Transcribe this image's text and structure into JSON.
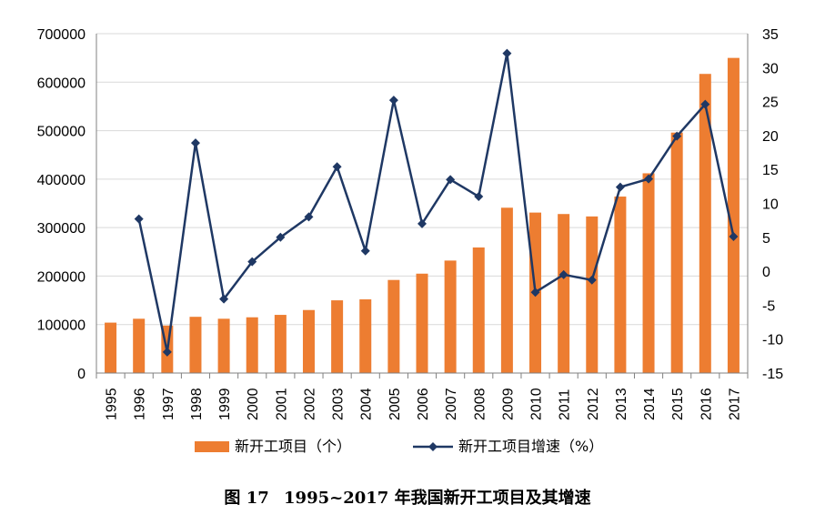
{
  "chart_data": {
    "type": "bar+line",
    "categories": [
      "1995",
      "1996",
      "1997",
      "1998",
      "1999",
      "2000",
      "2001",
      "2002",
      "2003",
      "2004",
      "2005",
      "2006",
      "2007",
      "2008",
      "2009",
      "2010",
      "2011",
      "2012",
      "2013",
      "2014",
      "2015",
      "2016",
      "2017"
    ],
    "series": [
      {
        "name": "新开工项目（个）",
        "type": "bar",
        "axis": "left",
        "color": "#ED7D31",
        "values": [
          104000,
          112000,
          98000,
          116000,
          112000,
          115000,
          120000,
          130000,
          150000,
          152000,
          192000,
          205000,
          232000,
          259000,
          341000,
          331000,
          328000,
          323000,
          364000,
          412000,
          496000,
          617000,
          650000
        ]
      },
      {
        "name": "新开工项目增速（%）",
        "type": "line",
        "axis": "right",
        "color": "#1F3864",
        "values": [
          null,
          7.7,
          -11.9,
          18.9,
          -4.1,
          1.4,
          5.0,
          8.0,
          15.4,
          3.0,
          25.2,
          7.0,
          13.5,
          11.0,
          32.1,
          -3.1,
          -0.5,
          -1.3,
          12.4,
          13.6,
          19.9,
          24.6,
          5.1
        ]
      }
    ],
    "ylim_left": [
      0,
      700000
    ],
    "yticks_left": [
      "0",
      "100000",
      "200000",
      "300000",
      "400000",
      "500000",
      "600000",
      "700000"
    ],
    "ylim_right": [
      -15,
      35
    ],
    "yticks_right": [
      "-15",
      "-10",
      "-5",
      "0",
      "5",
      "10",
      "15",
      "20",
      "25",
      "30",
      "35"
    ],
    "grid": true,
    "legend_position": "bottom"
  },
  "caption": {
    "figure_no": "图 17",
    "text": "1995~2017 年我国新开工项目及其增速"
  }
}
